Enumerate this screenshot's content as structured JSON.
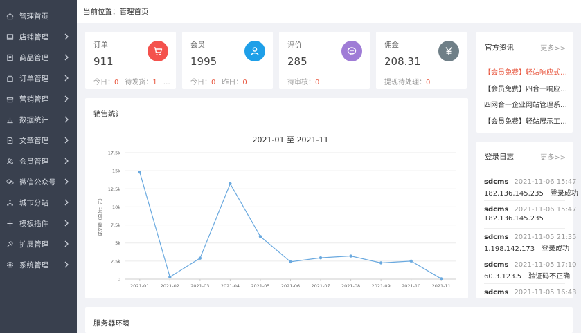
{
  "sidebar": {
    "items": [
      {
        "label": "管理首页",
        "icon": "home-icon",
        "has_arrow": false
      },
      {
        "label": "店铺管理",
        "icon": "store-icon",
        "has_arrow": true
      },
      {
        "label": "商品管理",
        "icon": "goods-icon",
        "has_arrow": true
      },
      {
        "label": "订单管理",
        "icon": "order-icon",
        "has_arrow": true
      },
      {
        "label": "营销管理",
        "icon": "gift-icon",
        "has_arrow": true
      },
      {
        "label": "数据统计",
        "icon": "bar-chart-icon",
        "has_arrow": true
      },
      {
        "label": "文章管理",
        "icon": "document-icon",
        "has_arrow": true
      },
      {
        "label": "会员管理",
        "icon": "users-icon",
        "has_arrow": true
      },
      {
        "label": "微信公众号",
        "icon": "wechat-icon",
        "has_arrow": true
      },
      {
        "label": "城市分站",
        "icon": "network-icon",
        "has_arrow": true
      },
      {
        "label": "模板插件",
        "icon": "plus-icon",
        "has_arrow": true
      },
      {
        "label": "扩展管理",
        "icon": "plugin-icon",
        "has_arrow": true
      },
      {
        "label": "系统管理",
        "icon": "gear-icon",
        "has_arrow": true
      }
    ]
  },
  "topbar": {
    "breadcrumb": "当前位置：管理首页"
  },
  "stats": [
    {
      "title": "订单",
      "value": "911",
      "icon": "cart-icon",
      "color": "#f4524d",
      "sub": [
        {
          "label": "今日：",
          "num": "0"
        },
        {
          "label": "待发货：",
          "num": "1"
        },
        {
          "label": "…",
          "num": ""
        }
      ]
    },
    {
      "title": "会员",
      "value": "1995",
      "icon": "user-icon",
      "color": "#1e9fe8",
      "sub": [
        {
          "label": "今日：",
          "num": "0"
        },
        {
          "label": "昨日：",
          "num": "0"
        }
      ]
    },
    {
      "title": "评价",
      "value": "285",
      "icon": "comment-icon",
      "color": "#9f7cd6",
      "sub": [
        {
          "label": "待审核：",
          "num": "0"
        }
      ]
    },
    {
      "title": "佣金",
      "value": "208.31",
      "icon": "yen-icon",
      "color": "#6f7f87",
      "sub": [
        {
          "label": "提现待处理：",
          "num": "0"
        }
      ]
    }
  ],
  "sales": {
    "panel_title": "销售统计"
  },
  "chart_data": {
    "type": "line",
    "title": "2021-01 至 2021-11",
    "ylabel": "成交额（单位：元）",
    "xlabel": "",
    "categories": [
      "2021-01",
      "2021-02",
      "2021-03",
      "2021-04",
      "2021-05",
      "2021-06",
      "2021-07",
      "2021-08",
      "2021-09",
      "2021-10",
      "2021-11"
    ],
    "values": [
      14800,
      300,
      2900,
      13200,
      5900,
      2400,
      2950,
      3200,
      2250,
      2500,
      50
    ],
    "ylim": [
      0,
      17500
    ],
    "yticks": [
      0,
      2500,
      5000,
      7500,
      10000,
      12500,
      15000,
      17500
    ],
    "ytick_labels": [
      "0",
      "2.5k",
      "5k",
      "7.5k",
      "10k",
      "12.5k",
      "15k",
      "17.5k"
    ],
    "color": "#6aa9df",
    "grid": true
  },
  "news": {
    "title": "官方资讯",
    "more": "更多>>",
    "items": [
      {
        "text": "【会员免费】轻站响应式…",
        "hot": true
      },
      {
        "text": "【会员免费】四合一响应…",
        "hot": false
      },
      {
        "text": "四网合一企业网站管理系…",
        "hot": false
      },
      {
        "text": "【会员免费】轻站展示工…",
        "hot": false
      }
    ]
  },
  "logs": {
    "title": "登录日志",
    "more": "更多>>",
    "items": [
      {
        "user": "sdcms",
        "time": "2021-11-06 15:47",
        "ip": "182.136.145.235",
        "status": "登录成功"
      },
      {
        "user": "sdcms",
        "time": "2021-11-06 15:47",
        "ip": "182.136.145.235",
        "status": ""
      },
      {
        "user": "sdcms",
        "time": "2021-11-05 21:35",
        "ip": "1.198.142.173",
        "status": "登录成功"
      },
      {
        "user": "sdcms",
        "time": "2021-11-05 17:10",
        "ip": "60.3.123.5",
        "status": "验证码不正确"
      },
      {
        "user": "sdcms",
        "time": "2021-11-05 16:43",
        "ip": "",
        "status": ""
      }
    ]
  },
  "server": {
    "panel_title": "服务器环境"
  }
}
